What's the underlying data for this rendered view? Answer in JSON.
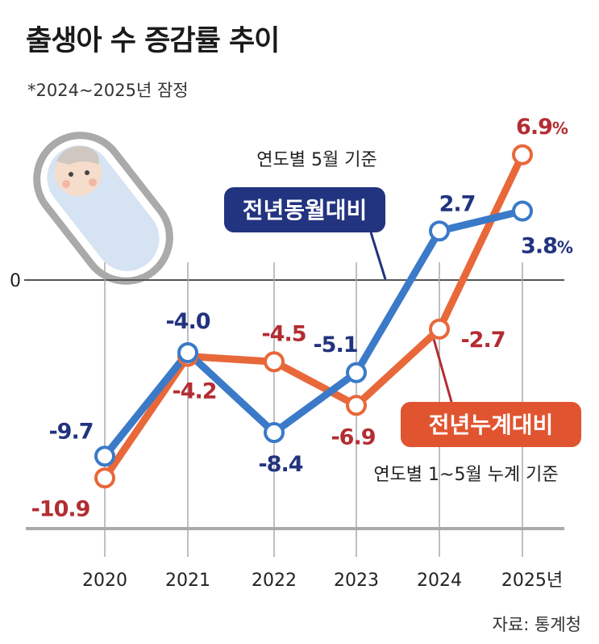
{
  "header": {
    "title": "출생아 수 증감률 추이",
    "note": "*2024~2025년 잠정",
    "source": "자료: 통계청"
  },
  "chart_data": {
    "type": "line",
    "categories": [
      "2020",
      "2021",
      "2022",
      "2023",
      "2024",
      "2025년"
    ],
    "zero_label": "0",
    "ylim": [
      -13,
      8
    ],
    "series": [
      {
        "name": "전년동월대비",
        "note": "연도별 5월 기준",
        "color": "#3a7ac8",
        "label_color": "#22337f",
        "values": [
          -9.7,
          -4.0,
          -8.4,
          -5.1,
          2.7,
          3.8
        ],
        "labels": [
          "-9.7",
          "-4.0",
          "-8.4",
          "-5.1",
          "2.7",
          "3.8%"
        ]
      },
      {
        "name": "전년누계대비",
        "note": "연도별 1~5월 누계 기준",
        "color": "#e8683a",
        "label_color": "#b32d32",
        "values": [
          -10.9,
          -4.2,
          -4.5,
          -6.9,
          -2.7,
          6.9
        ],
        "labels": [
          "-10.9",
          "-4.2",
          "-4.5",
          "-6.9",
          "-2.7",
          "6.9%"
        ]
      }
    ]
  }
}
